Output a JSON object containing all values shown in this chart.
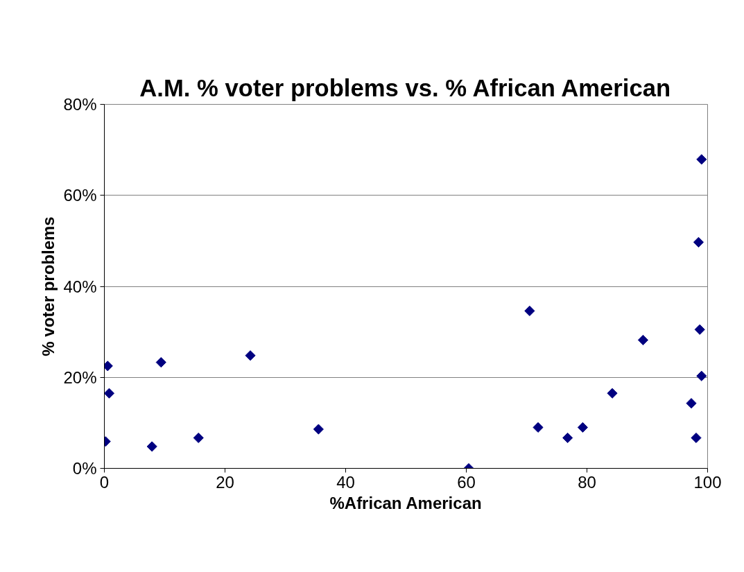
{
  "chart_data": {
    "type": "scatter",
    "title": "A.M. % voter problems vs. % African American",
    "xlabel": "%African American",
    "ylabel": "% voter problems",
    "x": [
      0.2,
      0.55,
      0.8,
      7.9,
      9.4,
      15.6,
      24.2,
      35.5,
      60.4,
      70.5,
      71.9,
      76.8,
      79.3,
      84.2,
      89.3,
      97.3,
      98.1,
      98.5,
      98.7,
      99.0,
      99.0
    ],
    "series": [
      {
        "color": "#000080",
        "values": [
          5.9,
          22.5,
          16.5,
          4.8,
          23.3,
          6.7,
          24.8,
          8.6,
          0,
          34.6,
          9.0,
          6.7,
          9.0,
          16.5,
          28.2,
          14.3,
          6.7,
          49.7,
          30.5,
          20.3,
          67.9
        ]
      }
    ],
    "xlim": [
      0,
      100
    ],
    "xticks": [
      0,
      20,
      40,
      60,
      80,
      100
    ],
    "ylim": [
      0,
      80
    ],
    "yticks": [
      {
        "value": 0,
        "label": "0%"
      },
      {
        "value": 20,
        "label": "20%"
      },
      {
        "value": 40,
        "label": "40%"
      },
      {
        "value": 60,
        "label": "60%"
      },
      {
        "value": 80,
        "label": "80%"
      }
    ],
    "grid": "y",
    "marker": "diamond"
  }
}
